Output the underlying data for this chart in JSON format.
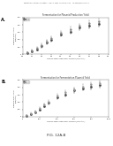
{
  "background_color": "#ffffff",
  "fig_caption": "FIG. 12A-B",
  "header_text": "Patent Application Publication    Feb. 5, 2009  Sheet 12 of 13    US 2009/0035823 A1",
  "panel_A_label": "A.",
  "panel_B_label": "B.",
  "plot_A": {
    "title": "Fermentation for Plasmid Production Yield",
    "xlabel": "OD600 Measured Final Volume (per liter)",
    "ylabel": "Plasmid DNA Yield\n(mg/liter)",
    "xlim": [
      0.0,
      0.9
    ],
    "ylim": [
      0,
      500
    ],
    "series": [
      {
        "x": [
          0.05,
          0.1,
          0.15,
          0.2,
          0.25,
          0.3,
          0.4,
          0.5,
          0.6,
          0.7,
          0.8
        ],
        "y": [
          20,
          40,
          70,
          110,
          160,
          200,
          270,
          310,
          360,
          390,
          415
        ],
        "yerr": [
          5,
          8,
          12,
          18,
          20,
          25,
          28,
          30,
          28,
          32,
          35
        ],
        "marker": "s",
        "color": "#444444",
        "label": "Run 1"
      },
      {
        "x": [
          0.05,
          0.1,
          0.15,
          0.2,
          0.25,
          0.3,
          0.4,
          0.5,
          0.6,
          0.7,
          0.8
        ],
        "y": [
          28,
          55,
          85,
          130,
          175,
          215,
          295,
          345,
          385,
          425,
          450
        ],
        "yerr": [
          5,
          8,
          12,
          18,
          20,
          25,
          28,
          30,
          28,
          32,
          35
        ],
        "marker": "^",
        "color": "#888888",
        "label": "Run 2"
      }
    ]
  },
  "plot_B": {
    "title": "Fermentation for Fermentation Plasmid Yield",
    "xlabel": "OD600 Measured Final Volume (per liter)",
    "ylabel": "Plasmid DNA Yield\n(mg/liter)",
    "xlim": [
      0,
      1000
    ],
    "ylim": [
      0,
      500
    ],
    "series": [
      {
        "x": [
          50,
          100,
          150,
          200,
          250,
          300,
          400,
          500,
          600,
          700,
          800,
          900
        ],
        "y": [
          15,
          35,
          65,
          100,
          150,
          190,
          265,
          305,
          355,
          385,
          410,
          435
        ],
        "yerr": [
          5,
          7,
          10,
          14,
          16,
          20,
          25,
          28,
          25,
          28,
          32,
          35
        ],
        "marker": "s",
        "color": "#444444",
        "label": "Run 1"
      },
      {
        "x": [
          50,
          100,
          150,
          200,
          250,
          300,
          400,
          500,
          600,
          700,
          800,
          900
        ],
        "y": [
          22,
          48,
          78,
          118,
          168,
          208,
          288,
          335,
          378,
          415,
          442,
          462
        ],
        "yerr": [
          5,
          7,
          10,
          14,
          16,
          20,
          25,
          28,
          25,
          28,
          32,
          35
        ],
        "marker": "^",
        "color": "#999999",
        "label": "Run 2"
      }
    ]
  }
}
